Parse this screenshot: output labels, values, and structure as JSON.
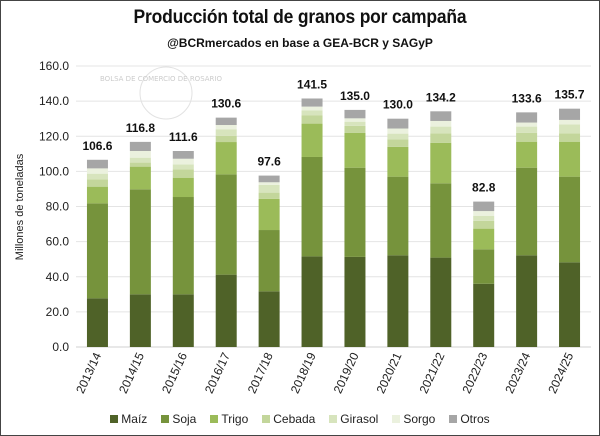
{
  "chart_data": {
    "type": "bar",
    "stacked": true,
    "title": "Producción total de granos por campaña",
    "subtitle": "@BCRmercados en base a GEA-BCR y SAGyP",
    "xlabel": "",
    "ylabel": "Millones de toneladas",
    "ylim": [
      0,
      160
    ],
    "yticks": [
      "0.0",
      "20.0",
      "40.0",
      "60.0",
      "80.0",
      "100.0",
      "120.0",
      "140.0",
      "160.0"
    ],
    "grid": true,
    "legend": "bottom",
    "watermark": "BOLSA DE COMERCIO DE ROSARIO",
    "categories": [
      "2013/14",
      "2014/15",
      "2015/16",
      "2016/17",
      "2017/18",
      "2018/19",
      "2019/20",
      "2020/21",
      "2021/22",
      "2022/23",
      "2023/24",
      "2024/25"
    ],
    "totals": [
      "106.6",
      "116.8",
      "111.6",
      "130.6",
      "97.6",
      "141.5",
      "135.0",
      "130.0",
      "134.2",
      "82.8",
      "133.6",
      "135.7"
    ],
    "series": [
      {
        "name": "Maíz",
        "color": "#4f6228",
        "values": [
          27.7,
          30.0,
          30.0,
          41.2,
          31.7,
          51.6,
          51.3,
          52.2,
          50.9,
          36.0,
          52.2,
          48.2
        ]
      },
      {
        "name": "Soja",
        "color": "#76933c",
        "values": [
          54.1,
          59.8,
          55.4,
          57.1,
          34.9,
          56.6,
          50.8,
          44.8,
          42.3,
          19.6,
          49.9,
          48.8
        ]
      },
      {
        "name": "Trigo",
        "color": "#9bbb59",
        "values": [
          9.5,
          12.9,
          11.0,
          18.4,
          17.7,
          19.0,
          19.9,
          17.0,
          23.1,
          11.8,
          14.8,
          19.9
        ]
      },
      {
        "name": "Cebada",
        "color": "#c3d69b",
        "values": [
          4.2,
          2.3,
          4.8,
          3.5,
          3.6,
          4.8,
          3.9,
          4.3,
          5.4,
          4.4,
          5.1,
          4.8
        ]
      },
      {
        "name": "Girasol",
        "color": "#d7e4bd",
        "values": [
          3.2,
          2.8,
          2.8,
          3.8,
          4.4,
          2.8,
          2.4,
          3.2,
          3.8,
          2.8,
          3.5,
          5.1
        ]
      },
      {
        "name": "Sorgo",
        "color": "#ebf1de",
        "values": [
          3.0,
          3.8,
          3.2,
          2.4,
          1.5,
          2.1,
          1.9,
          2.9,
          3.2,
          2.8,
          2.3,
          2.5
        ]
      },
      {
        "name": "Otros",
        "color": "#a6a6a6",
        "values": [
          4.9,
          5.2,
          4.4,
          4.2,
          3.8,
          4.6,
          4.8,
          5.6,
          5.5,
          5.4,
          5.8,
          6.4
        ]
      }
    ]
  }
}
